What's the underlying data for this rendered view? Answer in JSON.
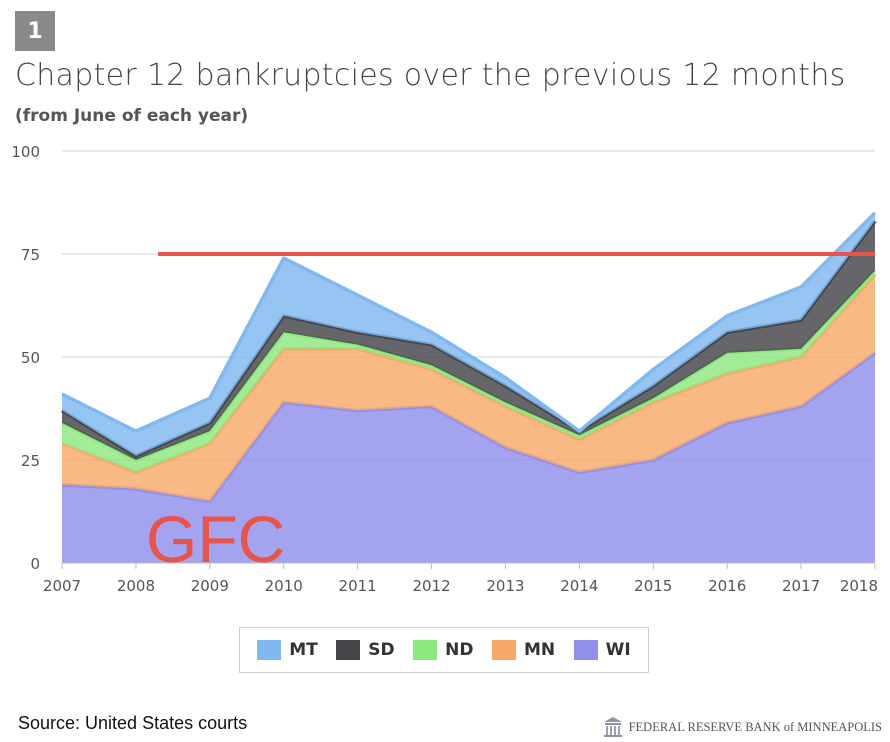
{
  "badge": "1",
  "title": "Chapter 12 bankruptcies over the previous 12 months",
  "subtitle": "(from June of each year)",
  "source": "Source: United States courts",
  "credit": "FEDERAL RESERVE BANK of MINNEAPOLIS",
  "annotation": {
    "text": "GFC",
    "color": "#e8544a"
  },
  "reference_line": {
    "value": 75,
    "from_x": 2008.3,
    "to_x": 2018.0,
    "color": "#e8544a"
  },
  "chart_data": {
    "type": "area",
    "stacked": true,
    "title": "Chapter 12 bankruptcies over the previous 12 months",
    "subtitle": "(from June of each year)",
    "x": [
      2007,
      2008,
      2009,
      2010,
      2011,
      2012,
      2013,
      2014,
      2015,
      2016,
      2017,
      2018
    ],
    "ylim": [
      0,
      100
    ],
    "yticks": [
      0,
      25,
      50,
      75,
      100
    ],
    "grid": true,
    "legend_position": "bottom",
    "series": [
      {
        "name": "WI",
        "color": "#8f8fec",
        "values": [
          19,
          18,
          15,
          39,
          37,
          38,
          28,
          22,
          25,
          34,
          38,
          51
        ]
      },
      {
        "name": "MN",
        "color": "#f7a96a",
        "values": [
          10,
          4,
          14,
          13,
          15,
          9,
          10,
          8,
          14,
          12,
          12,
          19
        ]
      },
      {
        "name": "ND",
        "color": "#8de880",
        "values": [
          5,
          3,
          3,
          4,
          1,
          1,
          1,
          1,
          1,
          5,
          2,
          1
        ]
      },
      {
        "name": "SD",
        "color": "#444449",
        "values": [
          3,
          1,
          2,
          4,
          3,
          5,
          4,
          1,
          3,
          5,
          7,
          12
        ]
      },
      {
        "name": "MT",
        "color": "#80b8f0",
        "values": [
          4,
          6,
          6,
          14,
          9,
          3,
          2,
          0,
          4,
          4,
          8,
          2
        ]
      }
    ],
    "legend_order": [
      "MT",
      "SD",
      "ND",
      "MN",
      "WI"
    ]
  }
}
